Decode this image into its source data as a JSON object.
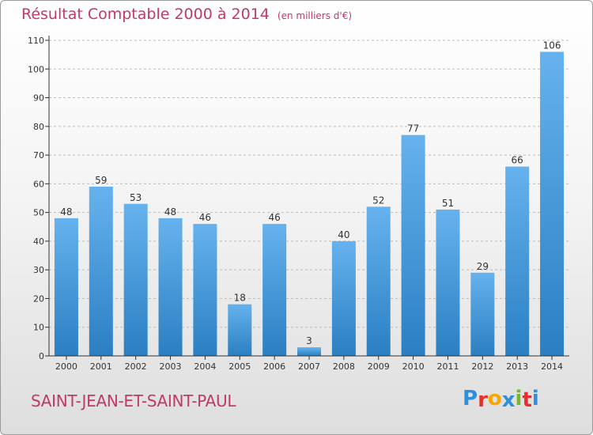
{
  "title": "Résultat Comptable 2000 à 2014",
  "subtitle": "(en milliers d'€)",
  "commune": "SAINT-JEAN-ET-SAINT-PAUL",
  "logo": {
    "letters": [
      "P",
      "r",
      "o",
      "x",
      "i",
      "t",
      "i"
    ],
    "colors": [
      "#2f8fdc",
      "#e4312b",
      "#f6a800",
      "#2f8fdc",
      "#76b82a",
      "#e4312b",
      "#2f8fdc"
    ]
  },
  "colors": {
    "bar_light": "#66b2ee",
    "bar_dark": "#2a7fc2",
    "title": "#c0396a",
    "grid": "#bdbdbd"
  },
  "chart_data": {
    "type": "bar",
    "title": "Résultat Comptable 2000 à 2014",
    "subtitle": "(en milliers d'€)",
    "categories": [
      "2000",
      "2001",
      "2002",
      "2003",
      "2004",
      "2005",
      "2006",
      "2007",
      "2008",
      "2009",
      "2010",
      "2011",
      "2012",
      "2013",
      "2014"
    ],
    "values": [
      48,
      59,
      53,
      48,
      46,
      18,
      46,
      3,
      40,
      52,
      77,
      51,
      29,
      66,
      106
    ],
    "ylim": [
      0,
      110
    ],
    "yticks": [
      0,
      10,
      20,
      30,
      40,
      50,
      60,
      70,
      80,
      90,
      100,
      110
    ],
    "grid": true,
    "xlabel": "",
    "ylabel": ""
  }
}
